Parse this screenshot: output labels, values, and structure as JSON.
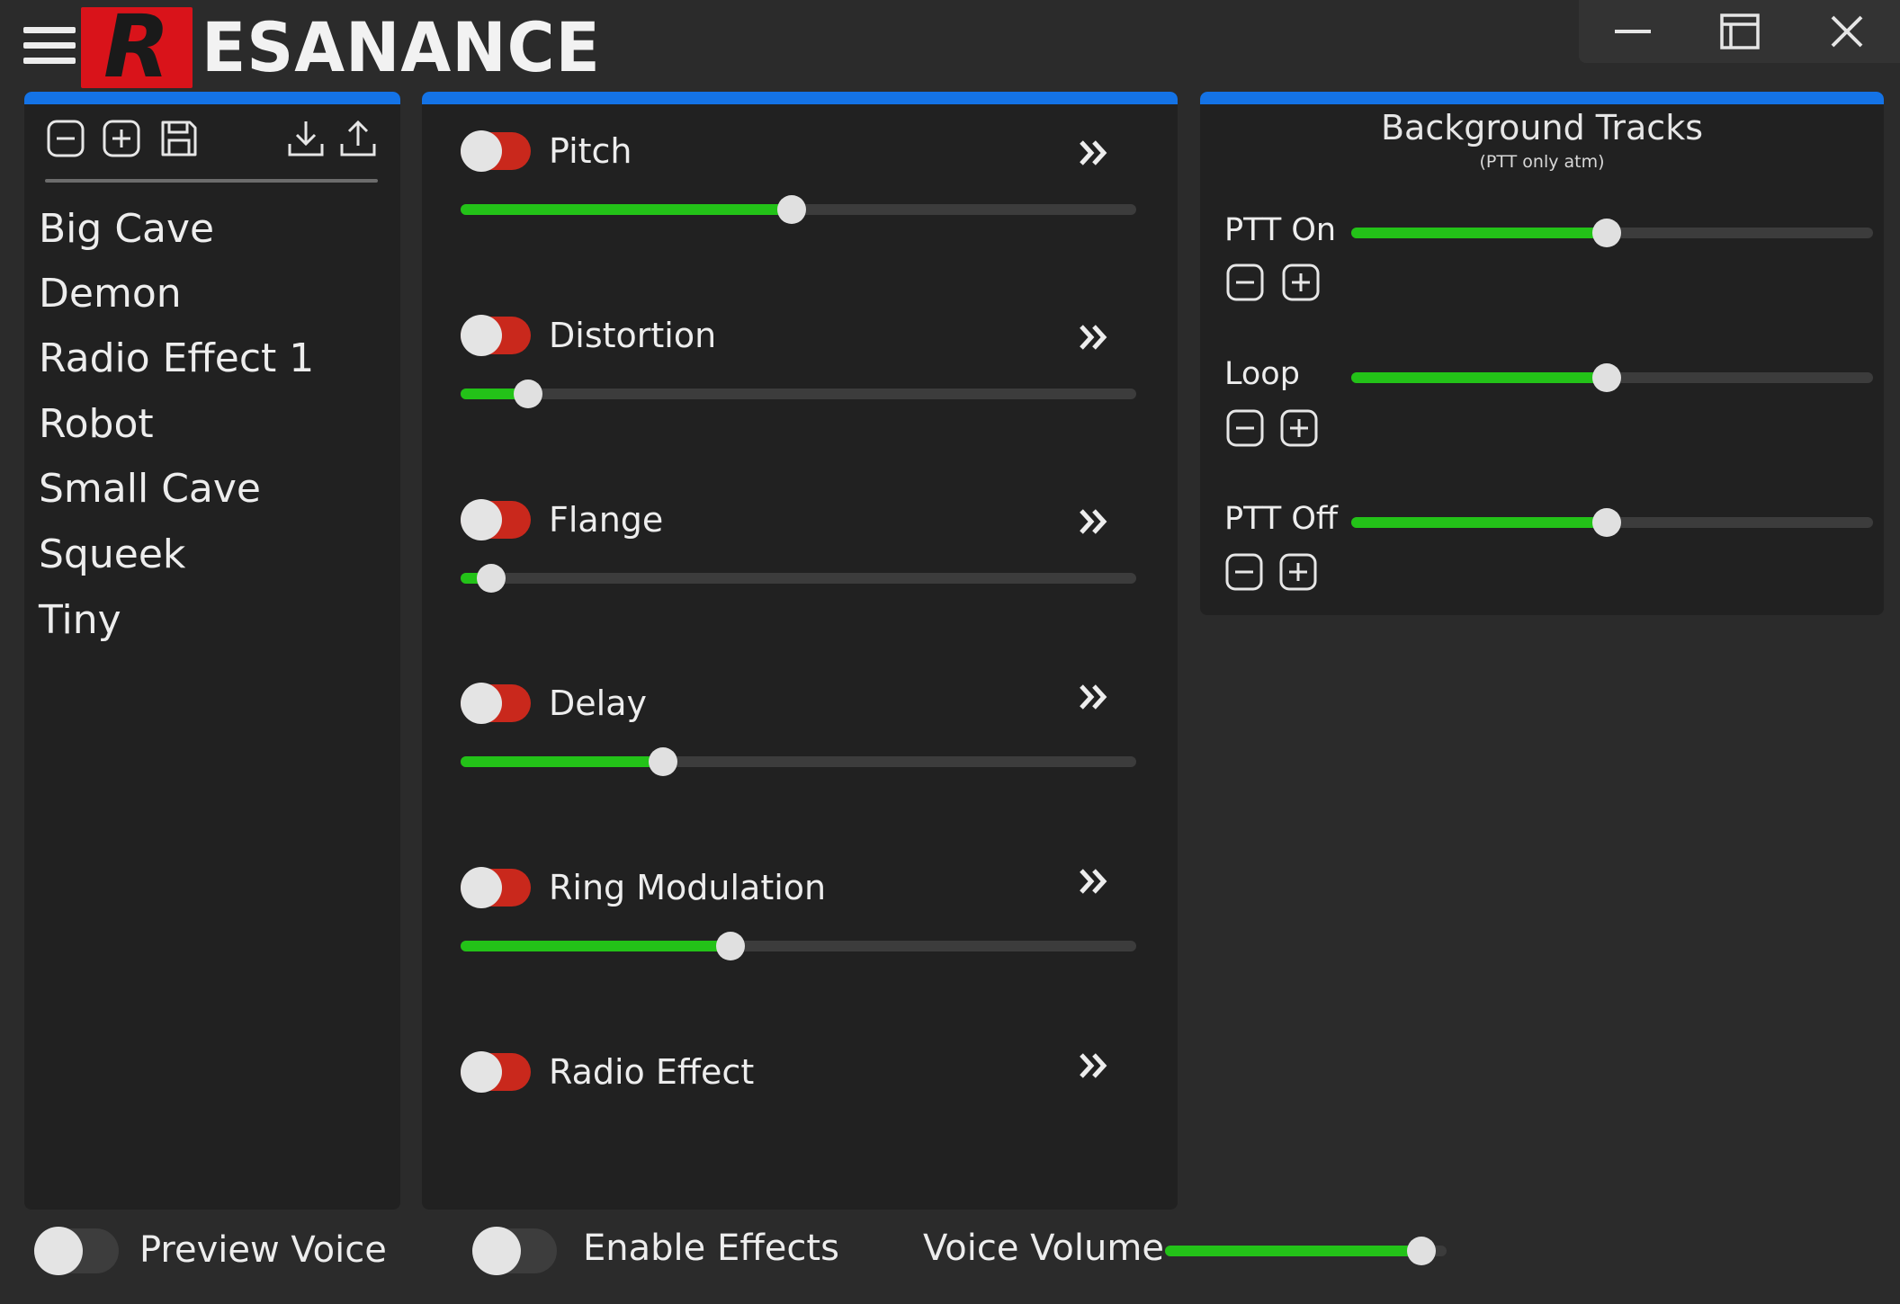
{
  "app": {
    "logo_letter": "R",
    "logo_text": "ESANANCE",
    "window_controls": [
      "minimize-icon",
      "maximize-icon",
      "close-icon"
    ]
  },
  "presets": {
    "toolbar": [
      "remove-preset-icon",
      "add-preset-icon",
      "save-icon",
      "download-icon",
      "upload-icon"
    ],
    "items": [
      "Big Cave",
      "Demon",
      "Radio Effect 1",
      "Robot",
      "Small Cave",
      "Squeek",
      "Tiny"
    ]
  },
  "effects": [
    {
      "label": "Pitch",
      "enabled": false,
      "level": 0.49
    },
    {
      "label": "Distortion",
      "enabled": false,
      "level": 0.1
    },
    {
      "label": "Flange",
      "enabled": false,
      "level": 0.045
    },
    {
      "label": "Delay",
      "enabled": false,
      "level": 0.3
    },
    {
      "label": "Ring Modulation",
      "enabled": false,
      "level": 0.4
    },
    {
      "label": "Radio Effect",
      "enabled": false,
      "level": null
    }
  ],
  "background_tracks": {
    "title": "Background Tracks",
    "subtitle": "(PTT only atm)",
    "tracks": [
      {
        "label": "PTT On",
        "level": 0.49
      },
      {
        "label": "Loop",
        "level": 0.49
      },
      {
        "label": "PTT Off",
        "level": 0.49
      }
    ]
  },
  "bottom": {
    "preview_voice": "Preview Voice",
    "enable_effects": "Enable Effects",
    "voice_volume": "Voice Volume",
    "voice_volume_level": 0.91
  },
  "colors": {
    "accent": "#1473e6",
    "slider_fill": "#23c218",
    "toggle_red": "#c9281c",
    "panel": "#212121",
    "background": "#2b2b2b",
    "logo_red": "#d9131a"
  }
}
